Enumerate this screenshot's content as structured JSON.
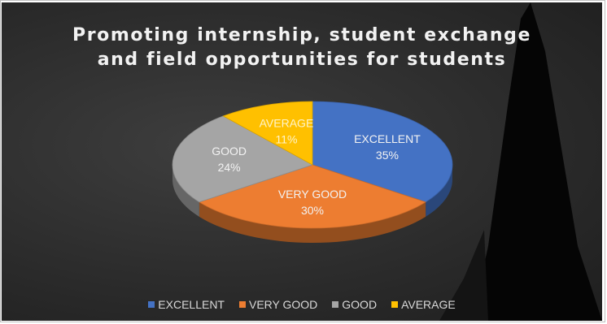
{
  "chart_data": {
    "type": "pie",
    "title_lines": [
      "Promoting internship, student exchange",
      "and field opportunities for students"
    ],
    "categories": [
      "EXCELLENT",
      "VERY GOOD",
      "GOOD",
      "AVERAGE"
    ],
    "values": [
      35,
      30,
      24,
      11
    ],
    "labels": [
      "35%",
      "30%",
      "24%",
      "11%"
    ],
    "colors": {
      "EXCELLENT": "#4472c4",
      "VERY GOOD": "#ed7d31",
      "GOOD": "#a5a5a5",
      "AVERAGE": "#ffc000"
    },
    "style": "3d",
    "legend_position": "bottom"
  }
}
